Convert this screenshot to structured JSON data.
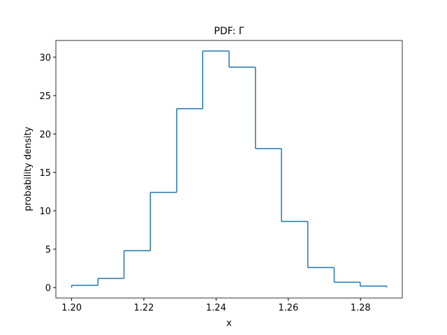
{
  "chart_data": {
    "type": "histogram",
    "title": "PDF: Γ",
    "xlabel": "x",
    "ylabel": "probability density",
    "bins": [
      1.2,
      1.2073,
      1.2145,
      1.2218,
      1.2291,
      1.2363,
      1.2436,
      1.2509,
      1.2581,
      1.2654,
      1.2727,
      1.2799,
      1.2872
    ],
    "values": [
      0.3,
      1.2,
      4.8,
      12.4,
      23.3,
      30.8,
      28.7,
      18.1,
      8.6,
      2.6,
      0.7,
      0.2
    ],
    "color": "#1f77b4",
    "histtype": "step",
    "xlim": [
      1.19564,
      1.29156
    ],
    "ylim": [
      -1.36,
      32.18
    ],
    "xticks": [
      {
        "value": 1.2,
        "label": "1.20"
      },
      1.22,
      1.24,
      1.26,
      1.28
    ],
    "yticks": [
      0,
      5,
      10,
      15,
      20,
      25,
      30
    ]
  }
}
